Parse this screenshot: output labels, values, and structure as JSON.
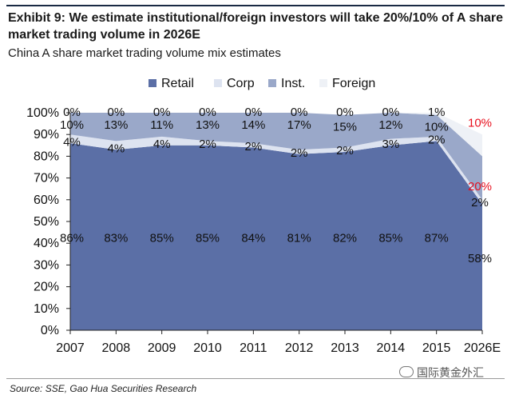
{
  "header": {
    "title": "Exhibit 9: We estimate institutional/foreign investors will take 20%/10% of A share market trading volume in 2026E",
    "subtitle": "China A share market trading volume mix estimates"
  },
  "footer": {
    "source": "Source: SSE, Gao Hua Securities Research",
    "watermark": "国际黄金外汇"
  },
  "chart_data": {
    "type": "area",
    "stacked": true,
    "categories": [
      "2007",
      "2008",
      "2009",
      "2010",
      "2011",
      "2012",
      "2013",
      "2014",
      "2015",
      "2026E"
    ],
    "series": [
      {
        "name": "Retail",
        "color": "#5b6fa6",
        "values": [
          86,
          83,
          85,
          85,
          84,
          81,
          82,
          85,
          87,
          58
        ],
        "labels": [
          "86%",
          "83%",
          "85%",
          "85%",
          "84%",
          "81%",
          "82%",
          "85%",
          "87%",
          "58%"
        ]
      },
      {
        "name": "Corp",
        "color": "#dde3f0",
        "values": [
          4,
          4,
          4,
          2,
          2,
          2,
          2,
          3,
          2,
          2
        ],
        "labels": [
          "4%",
          "4%",
          "4%",
          "2%",
          "2%",
          "2%",
          "2%",
          "3%",
          "2%",
          "2%"
        ]
      },
      {
        "name": "Inst.",
        "color": "#9aa8c9",
        "values": [
          10,
          13,
          11,
          13,
          14,
          17,
          15,
          12,
          10,
          20
        ],
        "labels": [
          "10%",
          "13%",
          "11%",
          "13%",
          "14%",
          "17%",
          "15%",
          "12%",
          "10%",
          "20%"
        ]
      },
      {
        "name": "Foreign",
        "color": "#eef1f6",
        "values": [
          0,
          0,
          0,
          0,
          0,
          0,
          0,
          0,
          1,
          10
        ],
        "labels": [
          "0%",
          "0%",
          "0%",
          "0%",
          "0%",
          "0%",
          "0%",
          "0%",
          "1%",
          "10%"
        ]
      }
    ],
    "highlight_color": "#e8101e",
    "y_ticks": [
      "0%",
      "10%",
      "20%",
      "30%",
      "40%",
      "50%",
      "60%",
      "70%",
      "80%",
      "90%",
      "100%"
    ],
    "ylim": [
      0,
      100
    ],
    "legend_position": "top",
    "grid": false
  }
}
